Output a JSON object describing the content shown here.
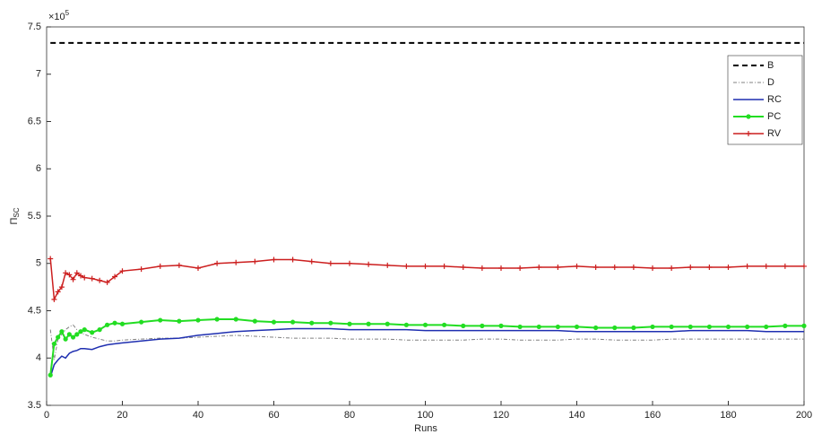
{
  "chart_data": {
    "type": "line",
    "xlabel": "Runs",
    "ylabel": {
      "text": "Π",
      "subscript": "SC"
    },
    "y_exponent": {
      "base": "×10",
      "power": "5"
    },
    "xlim": [
      0,
      200
    ],
    "xticks": [
      0,
      20,
      40,
      60,
      80,
      100,
      120,
      140,
      160,
      180,
      200
    ],
    "ylim": [
      3.5,
      7.5
    ],
    "yticks": [
      3.5,
      4,
      4.5,
      5,
      5.5,
      6,
      6.5,
      7,
      7.5
    ],
    "legend": "upper-right",
    "x": [
      1,
      2,
      3,
      4,
      5,
      6,
      7,
      8,
      9,
      10,
      12,
      14,
      16,
      18,
      20,
      25,
      30,
      35,
      40,
      45,
      50,
      55,
      60,
      65,
      70,
      75,
      80,
      85,
      90,
      95,
      100,
      105,
      110,
      115,
      120,
      125,
      130,
      135,
      140,
      145,
      150,
      155,
      160,
      165,
      170,
      175,
      180,
      185,
      190,
      195,
      200
    ],
    "series": [
      {
        "name": "B",
        "color": "#000000",
        "dash": "6,4",
        "width": 2,
        "marker": "none",
        "values": [
          7.33,
          7.33,
          7.33,
          7.33,
          7.33,
          7.33,
          7.33,
          7.33,
          7.33,
          7.33,
          7.33,
          7.33,
          7.33,
          7.33,
          7.33,
          7.33,
          7.33,
          7.33,
          7.33,
          7.33,
          7.33,
          7.33,
          7.33,
          7.33,
          7.33,
          7.33,
          7.33,
          7.33,
          7.33,
          7.33,
          7.33,
          7.33,
          7.33,
          7.33,
          7.33,
          7.33,
          7.33,
          7.33,
          7.33,
          7.33,
          7.33,
          7.33,
          7.33,
          7.33,
          7.33,
          7.33,
          7.33,
          7.33,
          7.33,
          7.33,
          7.33
        ]
      },
      {
        "name": "D",
        "color": "#808080",
        "dash": "4,2,1,2",
        "width": 1,
        "marker": "none",
        "values": [
          4.3,
          3.98,
          4.2,
          4.25,
          4.3,
          4.33,
          4.35,
          4.3,
          4.27,
          4.25,
          4.22,
          4.2,
          4.18,
          4.18,
          4.19,
          4.2,
          4.21,
          4.21,
          4.22,
          4.23,
          4.24,
          4.23,
          4.22,
          4.21,
          4.21,
          4.21,
          4.2,
          4.2,
          4.2,
          4.19,
          4.19,
          4.19,
          4.19,
          4.2,
          4.2,
          4.19,
          4.19,
          4.19,
          4.2,
          4.2,
          4.19,
          4.19,
          4.19,
          4.2,
          4.2,
          4.2,
          4.2,
          4.2,
          4.2,
          4.2,
          4.2
        ]
      },
      {
        "name": "RC",
        "color": "#1f2fb0",
        "dash": "none",
        "width": 1.5,
        "marker": "none",
        "values": [
          3.8,
          3.93,
          3.98,
          4.02,
          4.0,
          4.05,
          4.07,
          4.08,
          4.1,
          4.1,
          4.09,
          4.12,
          4.14,
          4.15,
          4.16,
          4.18,
          4.2,
          4.21,
          4.24,
          4.26,
          4.28,
          4.29,
          4.3,
          4.31,
          4.31,
          4.31,
          4.3,
          4.3,
          4.3,
          4.3,
          4.29,
          4.29,
          4.29,
          4.29,
          4.29,
          4.29,
          4.29,
          4.29,
          4.28,
          4.28,
          4.28,
          4.28,
          4.28,
          4.28,
          4.29,
          4.29,
          4.29,
          4.29,
          4.28,
          4.28,
          4.28
        ]
      },
      {
        "name": "PC",
        "color": "#22dd22",
        "dash": "none",
        "width": 2,
        "marker": "circle",
        "values": [
          3.82,
          4.15,
          4.22,
          4.28,
          4.2,
          4.25,
          4.22,
          4.25,
          4.28,
          4.3,
          4.27,
          4.3,
          4.35,
          4.37,
          4.36,
          4.38,
          4.4,
          4.39,
          4.4,
          4.41,
          4.41,
          4.39,
          4.38,
          4.38,
          4.37,
          4.37,
          4.36,
          4.36,
          4.36,
          4.35,
          4.35,
          4.35,
          4.34,
          4.34,
          4.34,
          4.33,
          4.33,
          4.33,
          4.33,
          4.32,
          4.32,
          4.32,
          4.33,
          4.33,
          4.33,
          4.33,
          4.33,
          4.33,
          4.33,
          4.34,
          4.34
        ]
      },
      {
        "name": "RV",
        "color": "#cc1f1f",
        "dash": "none",
        "width": 1.5,
        "marker": "plus",
        "values": [
          5.05,
          4.62,
          4.7,
          4.75,
          4.9,
          4.88,
          4.83,
          4.9,
          4.87,
          4.85,
          4.84,
          4.82,
          4.8,
          4.86,
          4.92,
          4.94,
          4.97,
          4.98,
          4.95,
          5.0,
          5.01,
          5.02,
          5.04,
          5.04,
          5.02,
          5.0,
          5.0,
          4.99,
          4.98,
          4.97,
          4.97,
          4.97,
          4.96,
          4.95,
          4.95,
          4.95,
          4.96,
          4.96,
          4.97,
          4.96,
          4.96,
          4.96,
          4.95,
          4.95,
          4.96,
          4.96,
          4.96,
          4.97,
          4.97,
          4.97,
          4.97
        ]
      }
    ]
  }
}
